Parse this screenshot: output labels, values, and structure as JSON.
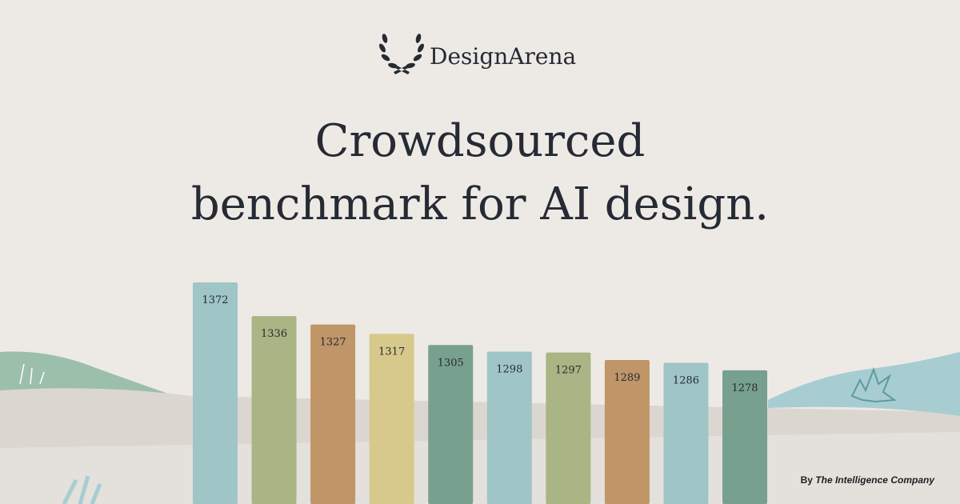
{
  "brand": "DesignArena",
  "headline": [
    "Crowdsourced",
    "benchmark for AI design."
  ],
  "credit": {
    "prefix": "By",
    "name": "The Intelligence Company"
  },
  "chart_data": {
    "type": "bar",
    "values": [
      1372,
      1336,
      1327,
      1317,
      1305,
      1298,
      1297,
      1289,
      1286,
      1278
    ],
    "colors": [
      "#9fc5c6",
      "#a9b584",
      "#c09567",
      "#d7c98b",
      "#78a08f",
      "#9fc5c6",
      "#a9b584",
      "#c09567",
      "#9fc5c6",
      "#78a08f"
    ],
    "ylim": [
      1135,
      1372
    ]
  }
}
